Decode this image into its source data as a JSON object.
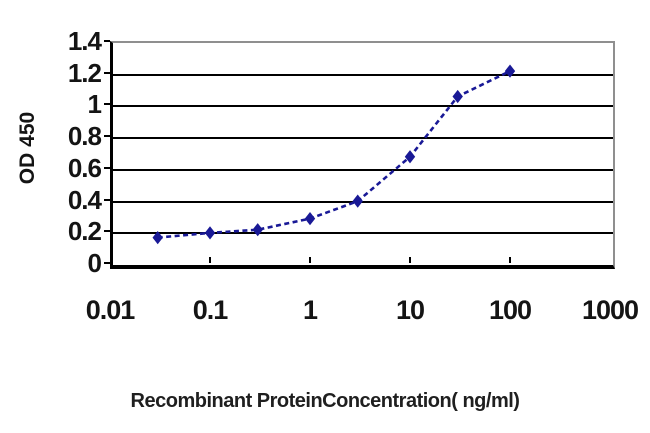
{
  "chart_data": {
    "type": "line",
    "title": "",
    "xlabel": "Recombinant ProteinConcentration( ng/ml)",
    "ylabel": "OD 450",
    "x_scale": "log",
    "x": [
      0.03,
      0.1,
      0.3,
      1,
      3,
      10,
      30,
      100
    ],
    "series": [
      {
        "name": "OD 450",
        "values": [
          0.16,
          0.19,
          0.21,
          0.28,
          0.39,
          0.67,
          1.05,
          1.21
        ]
      }
    ],
    "x_ticks": [
      "0.01",
      "0.1",
      "1",
      "10",
      "100",
      "1000"
    ],
    "x_tick_values": [
      0.01,
      0.1,
      1,
      10,
      100,
      1000
    ],
    "y_ticks": [
      "1.4",
      "1.2",
      "1",
      "0.8",
      "0.6",
      "0.4",
      "0.2",
      "0"
    ],
    "y_tick_values": [
      1.4,
      1.2,
      1,
      0.8,
      0.6,
      0.4,
      0.2,
      0
    ],
    "xlim": [
      0.01,
      1000
    ],
    "ylim": [
      0,
      1.4
    ],
    "grid": "horizontal",
    "legend": "none",
    "line_color": "#191996",
    "marker": "diamond",
    "line_style": "dashed"
  }
}
